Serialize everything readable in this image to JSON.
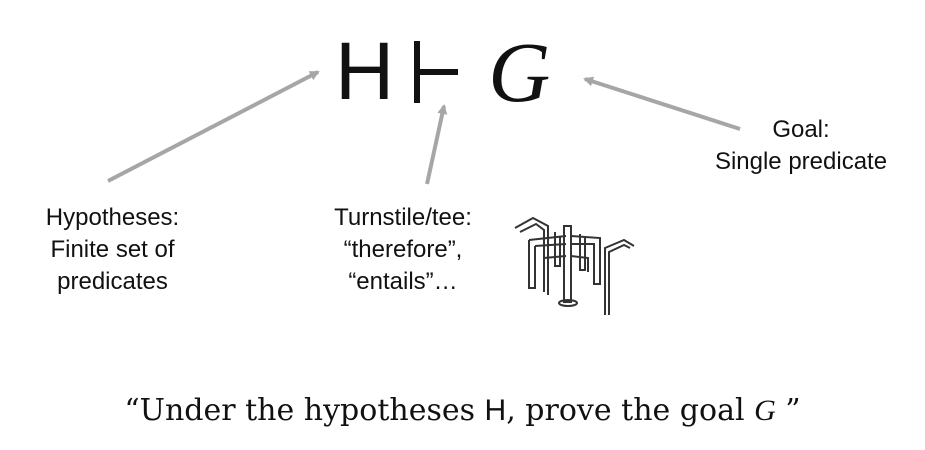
{
  "formula": {
    "hypotheses": "H",
    "turnstile": "⊢",
    "goal": "G"
  },
  "labels": {
    "hypotheses": [
      "Hypotheses:",
      "Finite set of",
      "predicates"
    ],
    "turnstile": [
      "Turnstile/tee:",
      "“therefore”,",
      "“entails”…"
    ],
    "goal": [
      "Goal:",
      "Single predicate"
    ]
  },
  "caption": {
    "open": "“Under the hypotheses ",
    "H": "H",
    "mid": ", prove the goal ",
    "G": "G",
    "close": " ”"
  },
  "colors": {
    "arrow": "#a6a6a6",
    "ink": "#111111"
  }
}
